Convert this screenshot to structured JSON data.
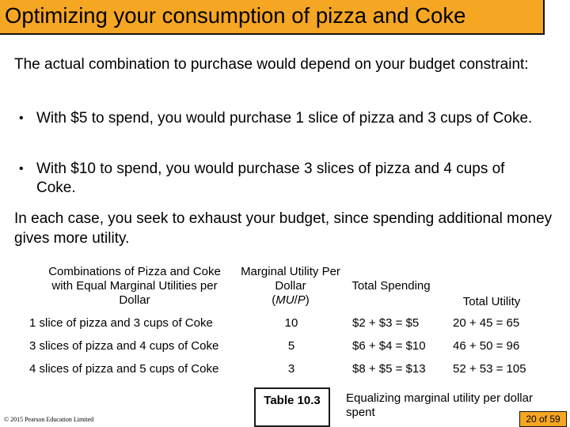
{
  "title": "Optimizing your consumption of pizza and Coke",
  "intro": "The actual combination to purchase would depend on your budget constraint:",
  "bullets": [
    "With $5 to spend, you would purchase 1 slice of pizza and 3 cups of Coke.",
    "With $10 to spend, you would purchase 3 slices of pizza and 4 cups of Coke."
  ],
  "bullet_marker": "•",
  "summary": "In each case, you seek to exhaust your budget, since spending additional money gives more utility.",
  "table": {
    "headers": {
      "combo": "Combinations of Pizza and Coke with Equal Marginal Utilities per Dollar",
      "mu_line1": "Marginal Utility Per Dollar",
      "mu_line2_open": "(",
      "mu_line2_mu": "MU",
      "mu_line2_slash": "/",
      "mu_line2_p": "P",
      "mu_line2_close": ")",
      "total_spending": "Total Spending",
      "total_utility": "Total Utility"
    },
    "rows": [
      {
        "combo": "1 slice of pizza and 3 cups of Coke",
        "mu": "10",
        "spending": "$2 + $3 = $5",
        "utility": "20 + 45 = 65"
      },
      {
        "combo": "3 slices of pizza and 4 cups of Coke",
        "mu": "5",
        "spending": "$6 + $4 = $10",
        "utility": "46 + 50 = 96"
      },
      {
        "combo": "4 slices of pizza and 5 cups of Coke",
        "mu": "3",
        "spending": "$8 + $5 = $13",
        "utility": "52 + 53 = 105"
      }
    ]
  },
  "caption_label": "Table 10.3",
  "caption_text": "Equalizing marginal utility per dollar spent",
  "copyright": "© 2015 Pearson Education Limited",
  "page_indicator": "20 of 59",
  "colors": {
    "title_bar": "#f5a623",
    "page_badge": "#f5a623"
  }
}
